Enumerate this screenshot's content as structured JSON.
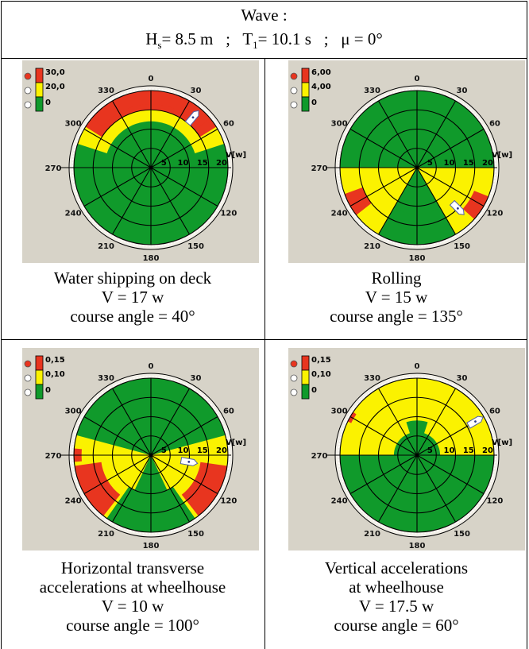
{
  "header": {
    "line1": "Wave :",
    "hs_sym": "H",
    "hs_sub": "s",
    "hs_val": "= 8.5 m   ;   ",
    "t_sym": "T",
    "t_sub": "1",
    "t_val": "= 10.1 s   ;   μ = 0°"
  },
  "polar_labels": {
    "angles": [
      "0",
      "30",
      "60",
      "120",
      "150",
      "180",
      "210",
      "240",
      "270",
      "300",
      "330"
    ],
    "radii": [
      "5",
      "10",
      "15",
      "20"
    ],
    "speed_axis": "V[w]"
  },
  "colors": {
    "red": "#e8351f",
    "yellow": "#fbf200",
    "green": "#109a2b",
    "background": "#d7d3c8"
  },
  "panels": [
    {
      "name": "water-shipping",
      "legend": [
        "30,0",
        "20,0",
        "0"
      ],
      "caption": [
        "Water shipping on deck",
        "V = 17 w",
        "course angle = 40°"
      ],
      "ship": {
        "speed": 17,
        "course_angle": 40
      }
    },
    {
      "name": "rolling",
      "legend": [
        "6,00",
        "4,00",
        "0"
      ],
      "caption": [
        "Rolling",
        "V = 15 w",
        "course angle = 135°"
      ],
      "ship": {
        "speed": 15,
        "course_angle": 135
      }
    },
    {
      "name": "horizontal-acc",
      "legend": [
        "0,15",
        "0,10",
        "0"
      ],
      "caption": [
        "Horizontal transverse",
        "accelerations at wheelhouse",
        "V = 10 w",
        "course angle = 100°"
      ],
      "ship": {
        "speed": 10,
        "course_angle": 100
      }
    },
    {
      "name": "vertical-acc",
      "legend": [
        "0,15",
        "0,10",
        "0"
      ],
      "caption": [
        "Vertical accelerations",
        "at wheelhouse",
        "V = 17.5 w",
        "course angle = 60°"
      ],
      "ship": {
        "speed": 17.5,
        "course_angle": 60
      }
    }
  ]
}
